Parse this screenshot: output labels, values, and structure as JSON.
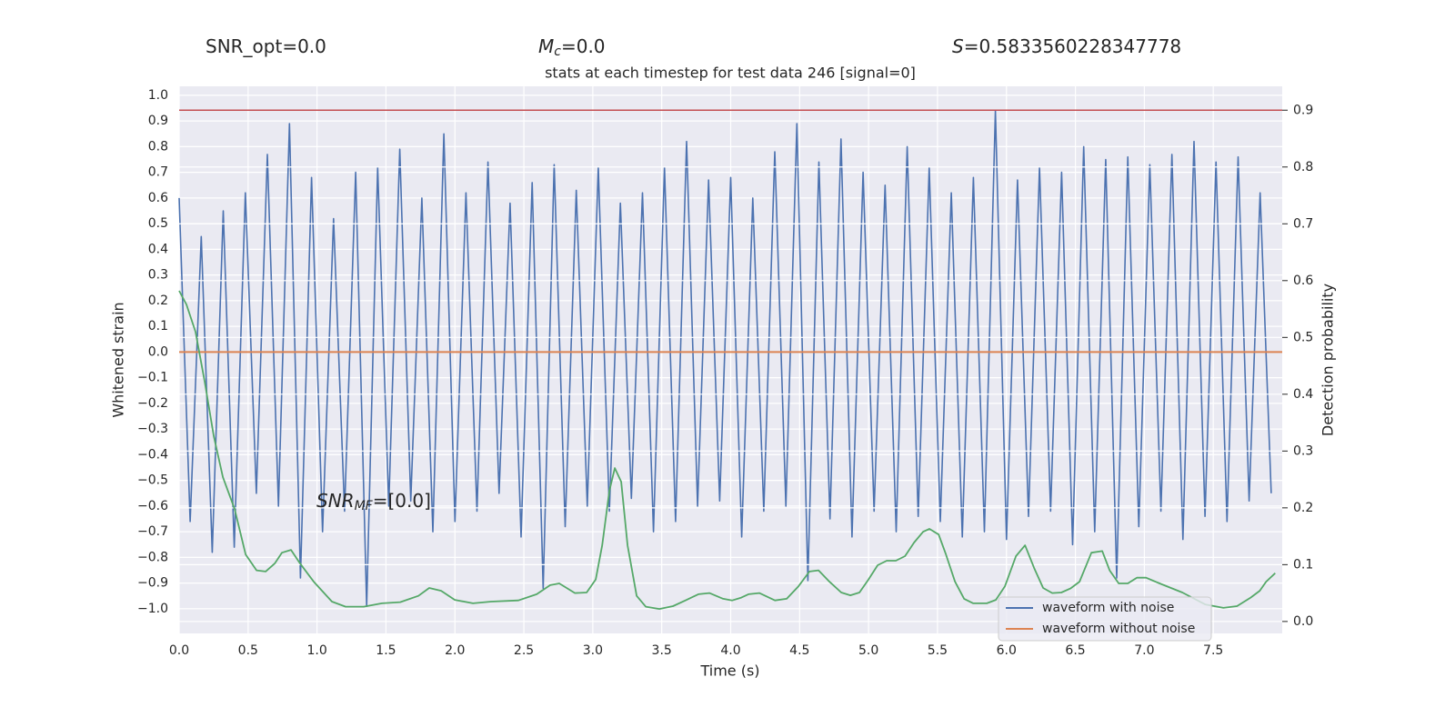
{
  "chart_data": {
    "type": "line",
    "title": "stats at each timestep for test data 246 [signal=0]",
    "header": [
      {
        "rest": "SNR_opt=0.0"
      },
      {
        "base": "M",
        "sub": "c",
        "rest": "=0.0"
      },
      {
        "base": "S",
        "rest": "=0.5833560228347778"
      }
    ],
    "annotation": {
      "base": "SNR",
      "sub": "MF",
      "rest": "=[0.0]"
    },
    "xlabel": "Time (s)",
    "ylabel": "Whitened strain",
    "y2label": "Detection probability",
    "xlim": [
      0,
      8
    ],
    "ylim": [
      -1.096,
      1.035
    ],
    "y2lim": [
      -0.021,
      0.942
    ],
    "grid": true,
    "background": "#eaeaf2",
    "legend": "lower right",
    "xticks": [
      {
        "value": 0,
        "label": "0.0"
      },
      {
        "value": 0.5,
        "label": "0.5"
      },
      {
        "value": 1,
        "label": "1.0"
      },
      {
        "value": 1.5,
        "label": "1.5"
      },
      {
        "value": 2,
        "label": "2.0"
      },
      {
        "value": 2.5,
        "label": "2.5"
      },
      {
        "value": 3,
        "label": "3.0"
      },
      {
        "value": 3.5,
        "label": "3.5"
      },
      {
        "value": 4,
        "label": "4.0"
      },
      {
        "value": 4.5,
        "label": "4.5"
      },
      {
        "value": 5,
        "label": "5.0"
      },
      {
        "value": 5.5,
        "label": "5.5"
      },
      {
        "value": 6,
        "label": "6.0"
      },
      {
        "value": 6.5,
        "label": "6.5"
      },
      {
        "value": 7,
        "label": "7.0"
      },
      {
        "value": 7.5,
        "label": "7.5"
      }
    ],
    "yticks": [
      {
        "value": -1,
        "label": "−1.0"
      },
      {
        "value": -0.9,
        "label": "−0.9"
      },
      {
        "value": -0.8,
        "label": "−0.8"
      },
      {
        "value": -0.7,
        "label": "−0.7"
      },
      {
        "value": -0.6,
        "label": "−0.6"
      },
      {
        "value": -0.5,
        "label": "−0.5"
      },
      {
        "value": -0.4,
        "label": "−0.4"
      },
      {
        "value": -0.3,
        "label": "−0.3"
      },
      {
        "value": -0.2,
        "label": "−0.2"
      },
      {
        "value": -0.1,
        "label": "−0.1"
      },
      {
        "value": 0,
        "label": "0.0"
      },
      {
        "value": 0.1,
        "label": "0.1"
      },
      {
        "value": 0.2,
        "label": "0.2"
      },
      {
        "value": 0.3,
        "label": "0.3"
      },
      {
        "value": 0.4,
        "label": "0.4"
      },
      {
        "value": 0.5,
        "label": "0.5"
      },
      {
        "value": 0.6,
        "label": "0.6"
      },
      {
        "value": 0.7,
        "label": "0.7"
      },
      {
        "value": 0.8,
        "label": "0.8"
      },
      {
        "value": 0.9,
        "label": "0.9"
      },
      {
        "value": 1,
        "label": "1.0"
      }
    ],
    "y2ticks": [
      {
        "value": 0,
        "label": "0.0"
      },
      {
        "value": 0.1,
        "label": "0.1"
      },
      {
        "value": 0.2,
        "label": "0.2"
      },
      {
        "value": 0.3,
        "label": "0.3"
      },
      {
        "value": 0.4,
        "label": "0.4"
      },
      {
        "value": 0.5,
        "label": "0.5"
      },
      {
        "value": 0.6,
        "label": "0.6"
      },
      {
        "value": 0.7,
        "label": "0.7"
      },
      {
        "value": 0.8,
        "label": "0.8"
      },
      {
        "value": 0.9,
        "label": "0.9"
      }
    ],
    "series": [
      {
        "name": "waveform with noise",
        "color": "#4c72b0",
        "x": [
          0,
          0.08,
          0.16,
          0.24,
          0.32,
          0.4,
          0.48,
          0.56,
          0.64,
          0.72,
          0.8,
          0.88,
          0.96,
          1.04,
          1.12,
          1.2,
          1.28,
          1.36,
          1.44,
          1.52,
          1.6,
          1.68,
          1.76,
          1.84,
          1.92,
          2,
          2.08,
          2.16,
          2.24,
          2.32,
          2.4,
          2.48,
          2.56,
          2.64,
          2.72,
          2.8,
          2.88,
          2.96,
          3.04,
          3.12,
          3.2,
          3.28,
          3.36,
          3.44,
          3.52,
          3.6,
          3.68,
          3.76,
          3.84,
          3.92,
          4,
          4.08,
          4.16,
          4.24,
          4.32,
          4.4,
          4.48,
          4.56,
          4.64,
          4.72,
          4.8,
          4.88,
          4.96,
          5.04,
          5.12,
          5.2,
          5.28,
          5.36,
          5.44,
          5.52,
          5.6,
          5.68,
          5.76,
          5.84,
          5.92,
          6,
          6.08,
          6.16,
          6.24,
          6.32,
          6.4,
          6.48,
          6.56,
          6.64,
          6.72,
          6.8,
          6.88,
          6.96,
          7.04,
          7.12,
          7.2,
          7.28,
          7.36,
          7.44,
          7.52,
          7.6,
          7.68,
          7.76,
          7.84,
          7.92
        ],
        "values": [
          0.6,
          -0.66,
          0.45,
          -0.78,
          0.55,
          -0.76,
          0.62,
          -0.55,
          0.77,
          -0.6,
          0.89,
          -0.88,
          0.68,
          -0.7,
          0.52,
          -0.62,
          0.7,
          -0.99,
          0.72,
          -0.6,
          0.79,
          -0.58,
          0.6,
          -0.7,
          0.85,
          -0.66,
          0.62,
          -0.62,
          0.74,
          -0.55,
          0.58,
          -0.72,
          0.66,
          -0.92,
          0.73,
          -0.68,
          0.63,
          -0.6,
          0.72,
          -0.62,
          0.58,
          -0.57,
          0.62,
          -0.7,
          0.72,
          -0.66,
          0.82,
          -0.6,
          0.67,
          -0.58,
          0.68,
          -0.72,
          0.6,
          -0.62,
          0.78,
          -0.6,
          0.89,
          -0.89,
          0.74,
          -0.65,
          0.83,
          -0.72,
          0.7,
          -0.62,
          0.65,
          -0.7,
          0.8,
          -0.64,
          0.72,
          -0.66,
          0.62,
          -0.72,
          0.68,
          -0.7,
          0.94,
          -0.73,
          0.67,
          -0.64,
          0.72,
          -0.62,
          0.7,
          -0.75,
          0.8,
          -0.7,
          0.75,
          -0.88,
          0.76,
          -0.68,
          0.73,
          -0.62,
          0.77,
          -0.73,
          0.82,
          -0.64,
          0.74,
          -0.66,
          0.76,
          -0.58,
          0.62,
          -0.55
        ]
      },
      {
        "name": "waveform without noise",
        "color": "#dd8452",
        "x": [
          0,
          8
        ],
        "values": [
          0,
          0
        ]
      }
    ],
    "probability": {
      "color": "#55a868",
      "axis": "y2",
      "x": [
        0,
        0.053,
        0.119,
        0.185,
        0.251,
        0.317,
        0.402,
        0.482,
        0.561,
        0.627,
        0.693,
        0.745,
        0.811,
        0.877,
        0.976,
        1.108,
        1.207,
        1.339,
        1.471,
        1.603,
        1.735,
        1.814,
        1.9,
        1.999,
        2.131,
        2.263,
        2.461,
        2.593,
        2.691,
        2.757,
        2.87,
        2.955,
        3.021,
        3.068,
        3.12,
        3.16,
        3.206,
        3.252,
        3.318,
        3.384,
        3.483,
        3.582,
        3.681,
        3.766,
        3.846,
        3.945,
        4.011,
        4.077,
        4.129,
        4.208,
        4.321,
        4.406,
        4.492,
        4.571,
        4.637,
        4.716,
        4.802,
        4.868,
        4.934,
        5,
        5.066,
        5.132,
        5.198,
        5.264,
        5.33,
        5.396,
        5.442,
        5.508,
        5.561,
        5.627,
        5.693,
        5.759,
        5.858,
        5.923,
        5.989,
        6.069,
        6.135,
        6.201,
        6.266,
        6.332,
        6.398,
        6.464,
        6.53,
        6.616,
        6.695,
        6.748,
        6.814,
        6.88,
        6.946,
        7.012,
        7.111,
        7.276,
        7.441,
        7.573,
        7.672,
        7.771,
        7.837,
        7.883,
        7.949
      ],
      "values": [
        0.582,
        0.558,
        0.51,
        0.422,
        0.326,
        0.254,
        0.198,
        0.118,
        0.09,
        0.088,
        0.102,
        0.121,
        0.126,
        0.102,
        0.07,
        0.035,
        0.026,
        0.026,
        0.032,
        0.034,
        0.045,
        0.059,
        0.054,
        0.038,
        0.032,
        0.035,
        0.037,
        0.048,
        0.064,
        0.067,
        0.05,
        0.051,
        0.074,
        0.134,
        0.23,
        0.27,
        0.246,
        0.134,
        0.045,
        0.026,
        0.022,
        0.027,
        0.038,
        0.048,
        0.05,
        0.04,
        0.037,
        0.042,
        0.048,
        0.05,
        0.037,
        0.04,
        0.062,
        0.088,
        0.09,
        0.07,
        0.051,
        0.046,
        0.051,
        0.074,
        0.099,
        0.107,
        0.107,
        0.115,
        0.139,
        0.158,
        0.163,
        0.153,
        0.118,
        0.07,
        0.04,
        0.032,
        0.032,
        0.038,
        0.062,
        0.115,
        0.134,
        0.094,
        0.059,
        0.05,
        0.051,
        0.058,
        0.07,
        0.121,
        0.124,
        0.09,
        0.067,
        0.067,
        0.077,
        0.077,
        0.067,
        0.051,
        0.03,
        0.024,
        0.027,
        0.042,
        0.054,
        0.07,
        0.085
      ]
    },
    "hlines": [
      {
        "value": 0.9,
        "axis": "y2",
        "color": "#c44e52"
      }
    ]
  }
}
